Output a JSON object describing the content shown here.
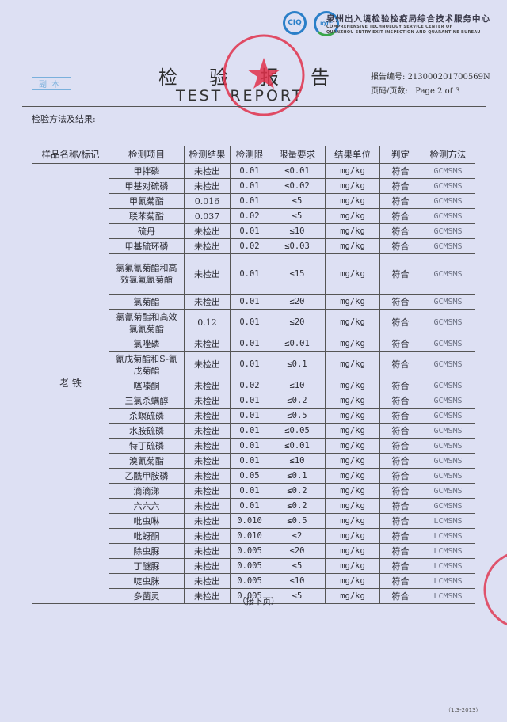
{
  "header": {
    "org_cn": "泉州出入境检验检疫局综合技术服务中心",
    "org_en_line1": "COMPREHENSIVE TECHNOLOGY SERVICE CENTER OF",
    "org_en_line2": "QUANZHOU ENTRY-EXIT INSPECTION AND QUARANTINE BUREAU",
    "logo1_text": "CIQ",
    "logo2_text": "IQTC",
    "title_cn": "检验报告",
    "title_en": "TEST REPORT",
    "copy_mark": "副本",
    "report_no_label": "报告编号:",
    "report_no": "21300020170056​9N",
    "page_label": "页码/页数:",
    "page_value": "Page 2 of   3"
  },
  "section_title": "检验方法及结果:",
  "table": {
    "columns": [
      "样品名称/标记",
      "检测项目",
      "检测结果",
      "检测限",
      "限量要求",
      "结果单位",
      "判定",
      "检测方法"
    ],
    "sample_name": "老 铁",
    "rows": [
      {
        "item": "甲拌磷",
        "result": "未检出",
        "lod": "0.01",
        "limit": "≤0.01",
        "unit": "mg/kg",
        "verdict": "符合",
        "method": "GCMSMS",
        "lines": 1
      },
      {
        "item": "甲基对硫磷",
        "result": "未检出",
        "lod": "0.01",
        "limit": "≤0.02",
        "unit": "mg/kg",
        "verdict": "符合",
        "method": "GCMSMS",
        "lines": 1
      },
      {
        "item": "甲氰菊酯",
        "result": "0.016",
        "lod": "0.01",
        "limit": "≤5",
        "unit": "mg/kg",
        "verdict": "符合",
        "method": "GCMSMS",
        "lines": 1
      },
      {
        "item": "联苯菊酯",
        "result": "0.037",
        "lod": "0.02",
        "limit": "≤5",
        "unit": "mg/kg",
        "verdict": "符合",
        "method": "GCMSMS",
        "lines": 1
      },
      {
        "item": "硫丹",
        "result": "未检出",
        "lod": "0.01",
        "limit": "≤10",
        "unit": "mg/kg",
        "verdict": "符合",
        "method": "GCMSMS",
        "lines": 1
      },
      {
        "item": "甲基硫环磷",
        "result": "未检出",
        "lod": "0.02",
        "limit": "≤0.03",
        "unit": "mg/kg",
        "verdict": "符合",
        "method": "GCMSMS",
        "lines": 1
      },
      {
        "item": "氯氟氰菊酯和高效氯氟氰菊酯",
        "result": "未检出",
        "lod": "0.01",
        "limit": "≤15",
        "unit": "mg/kg",
        "verdict": "符合",
        "method": "GCMSMS",
        "lines": 3
      },
      {
        "item": "氯菊酯",
        "result": "未检出",
        "lod": "0.01",
        "limit": "≤20",
        "unit": "mg/kg",
        "verdict": "符合",
        "method": "GCMSMS",
        "lines": 1
      },
      {
        "item": "氯氰菊酯和高效氯氰菊酯",
        "result": "0.12",
        "lod": "0.01",
        "limit": "≤20",
        "unit": "mg/kg",
        "verdict": "符合",
        "method": "GCMSMS",
        "lines": 2
      },
      {
        "item": "氯唑磷",
        "result": "未检出",
        "lod": "0.01",
        "limit": "≤0.01",
        "unit": "mg/kg",
        "verdict": "符合",
        "method": "GCMSMS",
        "lines": 1
      },
      {
        "item": "氰戊菊酯和S-氰戊菊酯",
        "result": "未检出",
        "lod": "0.01",
        "limit": "≤0.1",
        "unit": "mg/kg",
        "verdict": "符合",
        "method": "GCMSMS",
        "lines": 2
      },
      {
        "item": "噻嗪酮",
        "result": "未检出",
        "lod": "0.02",
        "limit": "≤10",
        "unit": "mg/kg",
        "verdict": "符合",
        "method": "GCMSMS",
        "lines": 1
      },
      {
        "item": "三氯杀螨醇",
        "result": "未检出",
        "lod": "0.01",
        "limit": "≤0.2",
        "unit": "mg/kg",
        "verdict": "符合",
        "method": "GCMSMS",
        "lines": 1
      },
      {
        "item": "杀螟硫磷",
        "result": "未检出",
        "lod": "0.01",
        "limit": "≤0.5",
        "unit": "mg/kg",
        "verdict": "符合",
        "method": "GCMSMS",
        "lines": 1
      },
      {
        "item": "水胺硫磷",
        "result": "未检出",
        "lod": "0.01",
        "limit": "≤0.05",
        "unit": "mg/kg",
        "verdict": "符合",
        "method": "GCMSMS",
        "lines": 1
      },
      {
        "item": "特丁硫磷",
        "result": "未检出",
        "lod": "0.01",
        "limit": "≤0.01",
        "unit": "mg/kg",
        "verdict": "符合",
        "method": "GCMSMS",
        "lines": 1
      },
      {
        "item": "溴氰菊酯",
        "result": "未检出",
        "lod": "0.01",
        "limit": "≤10",
        "unit": "mg/kg",
        "verdict": "符合",
        "method": "GCMSMS",
        "lines": 1
      },
      {
        "item": "乙酰甲胺磷",
        "result": "未检出",
        "lod": "0.05",
        "limit": "≤0.1",
        "unit": "mg/kg",
        "verdict": "符合",
        "method": "GCMSMS",
        "lines": 1
      },
      {
        "item": "滴滴涕",
        "result": "未检出",
        "lod": "0.01",
        "limit": "≤0.2",
        "unit": "mg/kg",
        "verdict": "符合",
        "method": "GCMSMS",
        "lines": 1
      },
      {
        "item": "六六六",
        "result": "未检出",
        "lod": "0.01",
        "limit": "≤0.2",
        "unit": "mg/kg",
        "verdict": "符合",
        "method": "GCMSMS",
        "lines": 1
      },
      {
        "item": "吡虫啉",
        "result": "未检出",
        "lod": "0.010",
        "limit": "≤0.5",
        "unit": "mg/kg",
        "verdict": "符合",
        "method": "LCMSMS",
        "lines": 1
      },
      {
        "item": "吡蚜酮",
        "result": "未检出",
        "lod": "0.010",
        "limit": "≤2",
        "unit": "mg/kg",
        "verdict": "符合",
        "method": "LCMSMS",
        "lines": 1
      },
      {
        "item": "除虫脲",
        "result": "未检出",
        "lod": "0.005",
        "limit": "≤20",
        "unit": "mg/kg",
        "verdict": "符合",
        "method": "LCMSMS",
        "lines": 1
      },
      {
        "item": "丁醚脲",
        "result": "未检出",
        "lod": "0.005",
        "limit": "≤5",
        "unit": "mg/kg",
        "verdict": "符合",
        "method": "LCMSMS",
        "lines": 1
      },
      {
        "item": "啶虫脒",
        "result": "未检出",
        "lod": "0.005",
        "limit": "≤10",
        "unit": "mg/kg",
        "verdict": "符合",
        "method": "LCMSMS",
        "lines": 1
      },
      {
        "item": "多菌灵",
        "result": "未检出",
        "lod": "0.005",
        "limit": "≤5",
        "unit": "mg/kg",
        "verdict": "符合",
        "method": "LCMSMS",
        "lines": 1
      }
    ]
  },
  "continued": "（接下页）",
  "footer_code": "（1.3-2013）",
  "colors": {
    "paper": "#dde0f3",
    "stamp": "#e0304a",
    "logo_blue": "#2a7fc8",
    "logo_green": "#3aa64a"
  }
}
